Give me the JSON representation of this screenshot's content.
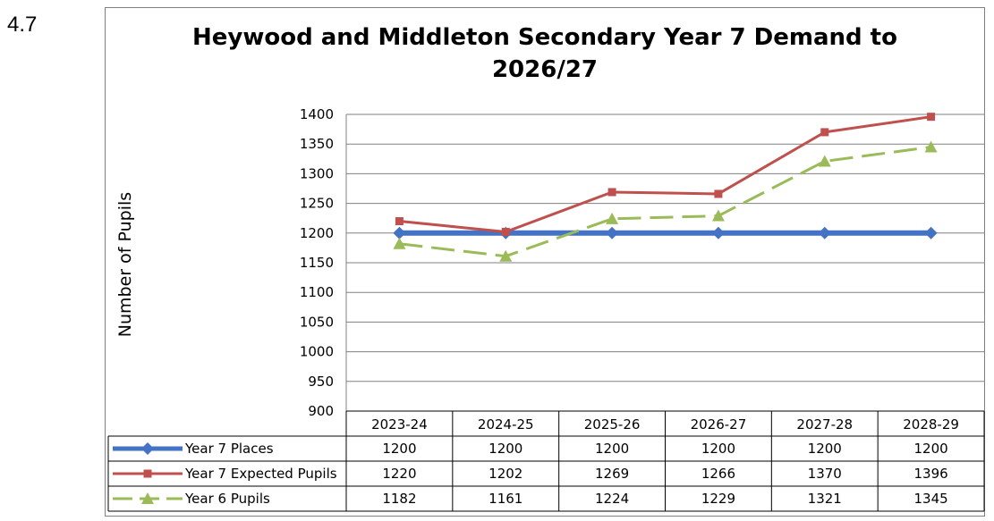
{
  "section_number": "4.7",
  "chart_data": {
    "type": "line",
    "title": "Heywood and Middleton Secondary Year 7 Demand to 2026/27",
    "xlabel": "",
    "ylabel": "Number of Pupils",
    "ylim": [
      900,
      1400
    ],
    "yticks": [
      900,
      950,
      1000,
      1050,
      1100,
      1150,
      1200,
      1250,
      1300,
      1350,
      1400
    ],
    "grid": true,
    "legend": "data-table",
    "categories": [
      "2023-24",
      "2024-25",
      "2025-26",
      "2026-27",
      "2027-28",
      "2028-29"
    ],
    "series": [
      {
        "name": "Year 7 Places",
        "values": [
          1200,
          1200,
          1200,
          1200,
          1200,
          1200
        ],
        "color": "#4472C4",
        "marker": "diamond",
        "dash": "solid"
      },
      {
        "name": "Year 7 Expected Pupils",
        "values": [
          1220,
          1202,
          1269,
          1266,
          1370,
          1396
        ],
        "color": "#C0504D",
        "marker": "square",
        "dash": "solid"
      },
      {
        "name": "Year 6 Pupils",
        "values": [
          1182,
          1161,
          1224,
          1229,
          1321,
          1345
        ],
        "color": "#9BBB59",
        "marker": "triangle",
        "dash": "dashed"
      }
    ]
  }
}
